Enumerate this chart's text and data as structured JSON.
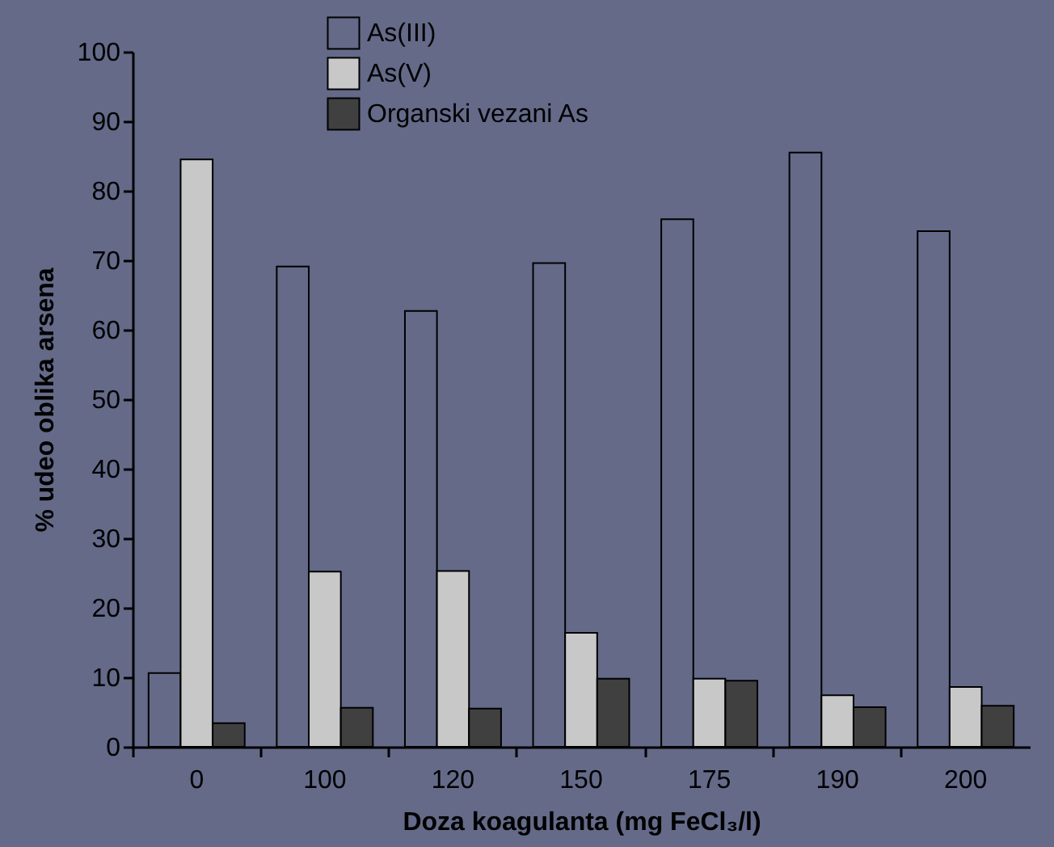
{
  "chart_data": {
    "type": "bar",
    "xlabel": "Doza koagulanta (mg FeCl₃/l)",
    "ylabel": "% udeo oblika arsena",
    "categories": [
      "0",
      "100",
      "120",
      "150",
      "175",
      "190",
      "200"
    ],
    "series": [
      {
        "name": "As(III)",
        "color": "#646a88",
        "values": [
          10.6,
          69.1,
          62.7,
          69.6,
          75.9,
          85.5,
          74.2
        ]
      },
      {
        "name": "As(V)",
        "color": "#c8c8c8",
        "values": [
          84.5,
          25.2,
          25.3,
          16.4,
          9.8,
          7.4,
          8.6
        ]
      },
      {
        "name": "Organski vezani As",
        "color": "#404040",
        "values": [
          3.4,
          5.6,
          5.5,
          9.8,
          9.5,
          5.7,
          5.9
        ]
      }
    ],
    "ylim": [
      0,
      100
    ],
    "yticks": [
      0,
      10,
      20,
      30,
      40,
      50,
      60,
      70,
      80,
      90,
      100
    ],
    "grid": false,
    "legend": "top"
  }
}
